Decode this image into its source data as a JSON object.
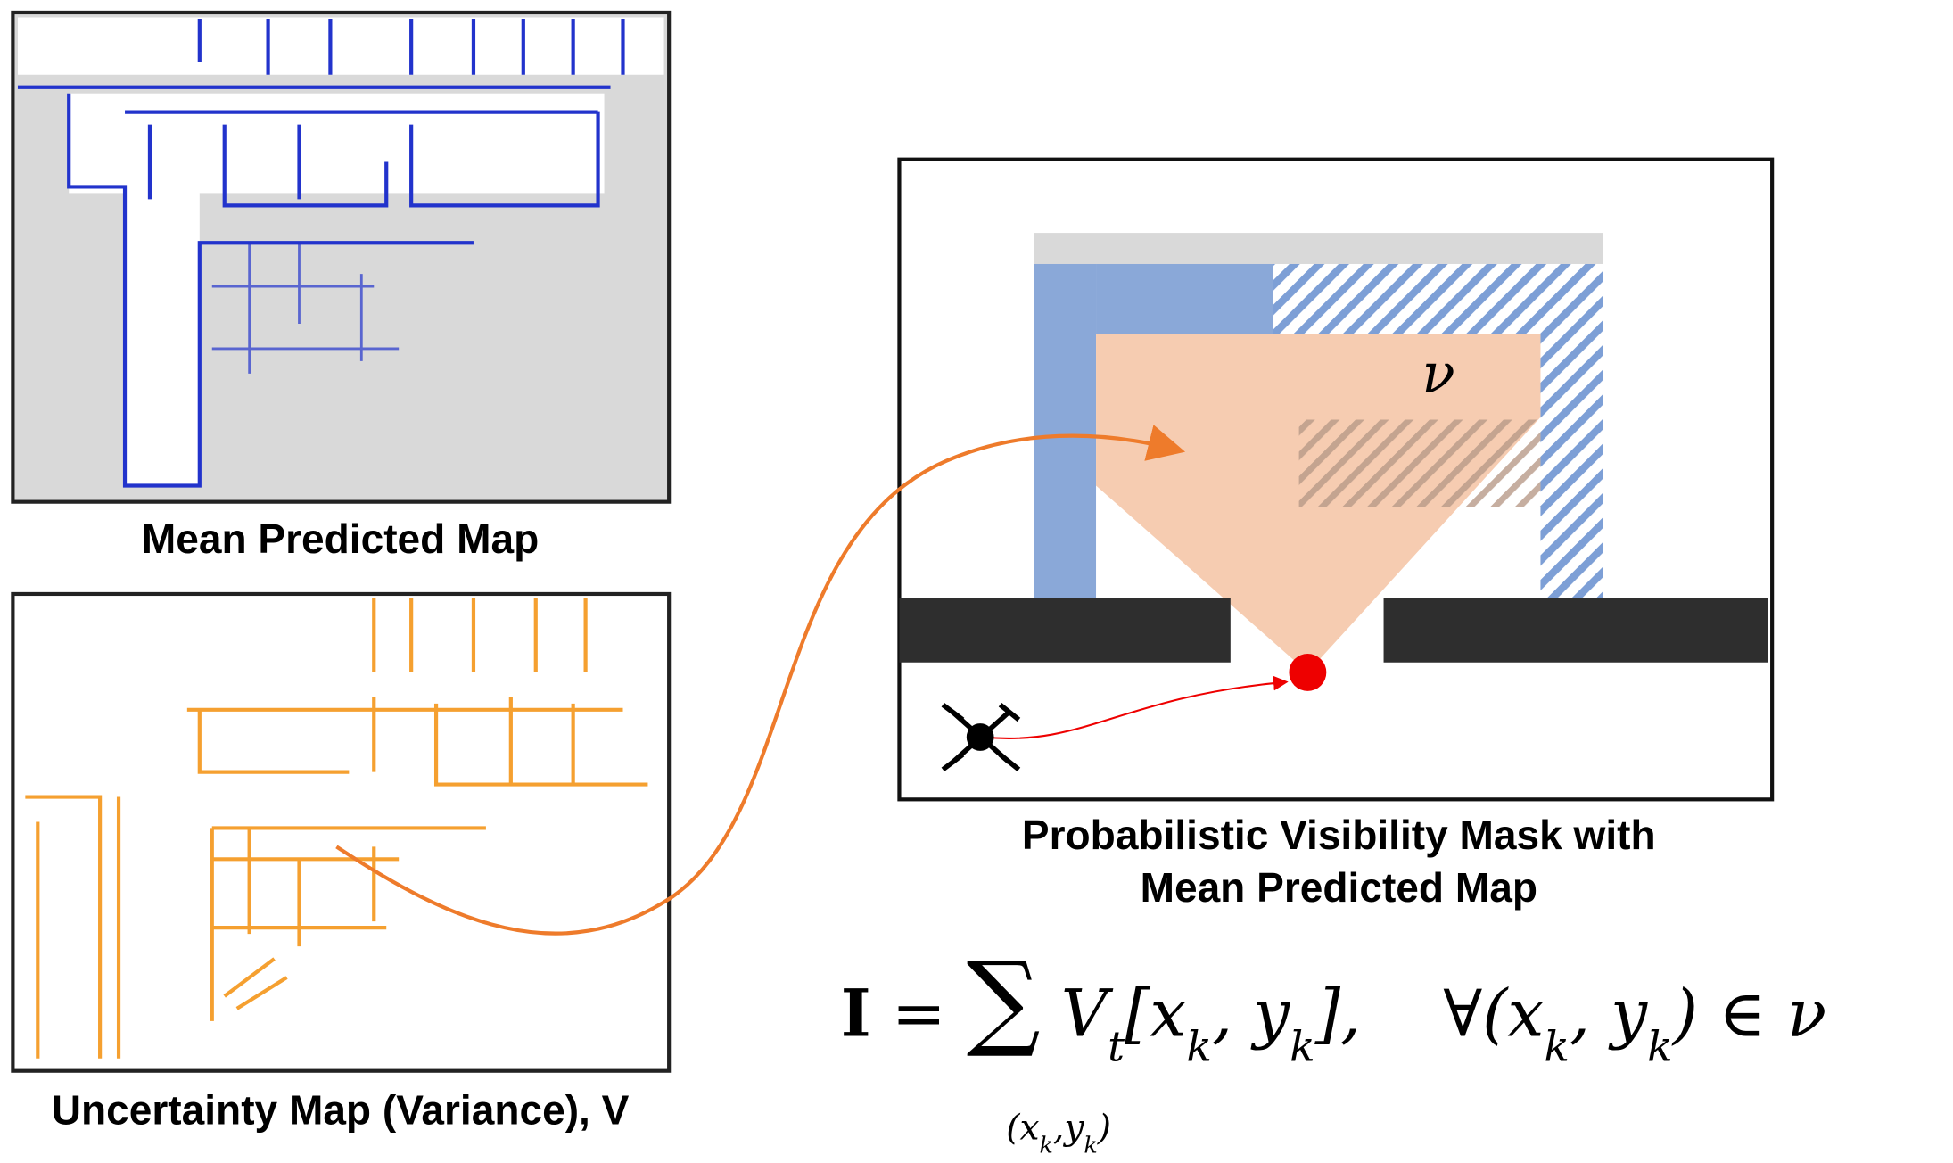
{
  "labels": {
    "mean_map": "Mean Predicted Map",
    "uncertainty_map": "Uncertainty Map (Variance), V",
    "visibility_mask": [
      "Probabilistic Visibility Mask with",
      "Mean Predicted Map"
    ],
    "region": "ν"
  },
  "formula": {
    "tokens": [
      {
        "text": "I"
      },
      {
        "text": " = "
      },
      {
        "text": "∑"
      },
      {
        "text": " V"
      },
      {
        "text": "t",
        "sub": true
      },
      {
        "text": "[x"
      },
      {
        "text": "k",
        "sub": true
      },
      {
        "text": ", y"
      },
      {
        "text": "k",
        "sub": true
      },
      {
        "text": "],    ∀(x"
      },
      {
        "text": "k",
        "sub": true
      },
      {
        "text": ", y"
      },
      {
        "text": "k",
        "sub": true
      },
      {
        "text": ") ∈ ν"
      }
    ],
    "sum_index": [
      {
        "text": "(x"
      },
      {
        "text": "k",
        "sub": true
      },
      {
        "text": ",y"
      },
      {
        "text": "k",
        "sub": true
      },
      {
        "text": ")"
      }
    ]
  }
}
